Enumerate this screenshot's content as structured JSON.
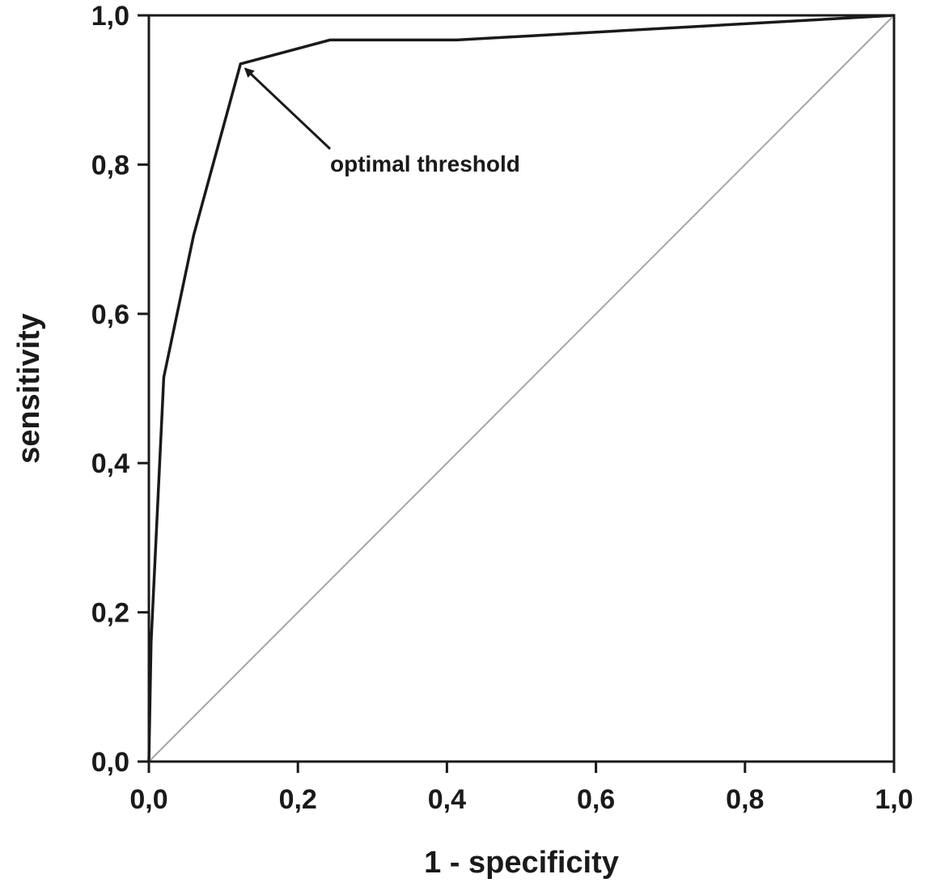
{
  "chart_data": {
    "type": "line",
    "title": "",
    "xlabel": "1 - specificity",
    "ylabel": "sensitivity",
    "xlim": [
      0.0,
      1.0
    ],
    "ylim": [
      0.0,
      1.0
    ],
    "grid": false,
    "legend": "none",
    "x_ticks": [
      0.0,
      0.2,
      0.4,
      0.6,
      0.8,
      1.0
    ],
    "y_ticks": [
      0.0,
      0.2,
      0.4,
      0.6,
      0.8,
      1.0
    ],
    "x_tick_labels": [
      "0,0",
      "0,2",
      "0,4",
      "0,6",
      "0,8",
      "1,0"
    ],
    "y_tick_labels": [
      "0,0",
      "0,2",
      "0,4",
      "0,6",
      "0,8",
      "1,0"
    ],
    "series": [
      {
        "color": "#1a1a1a",
        "x": [
          0.0,
          0.003,
          0.02,
          0.06,
          0.123,
          0.243,
          0.413,
          1.0
        ],
        "y": [
          0.0,
          0.16,
          0.515,
          0.705,
          0.935,
          0.967,
          0.967,
          1.0
        ]
      },
      {
        "color": "#a6a6a6",
        "x": [
          0.0,
          1.0
        ],
        "y": [
          0.0,
          1.0
        ]
      }
    ],
    "annotations": [
      {
        "text": "optimal threshold",
        "points_to": {
          "x": 0.123,
          "y": 0.935
        }
      }
    ]
  }
}
